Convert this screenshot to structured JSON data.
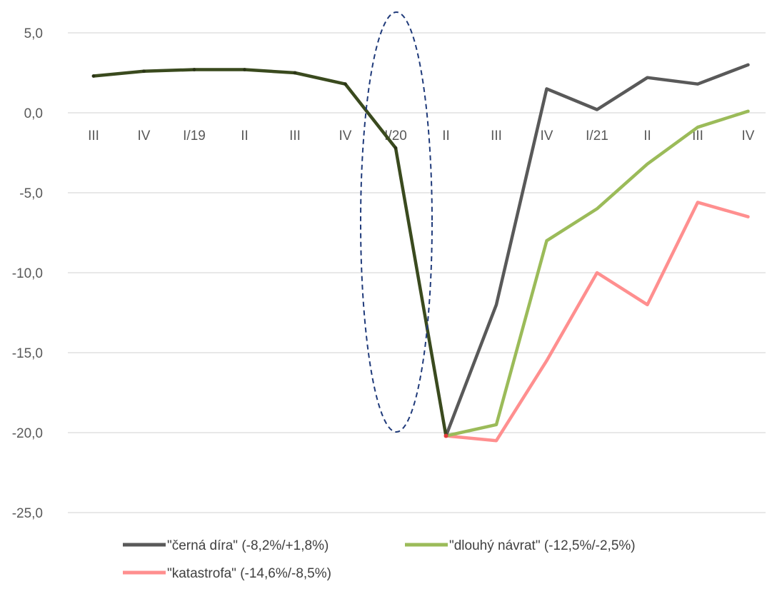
{
  "chart_data": {
    "type": "line",
    "categories": [
      "III",
      "IV",
      "I/19",
      "II",
      "III",
      "IV",
      "I/20",
      "II",
      "III",
      "IV",
      "I/21",
      "II",
      "III",
      "IV"
    ],
    "y_ticks": [
      "5,0",
      "0,0",
      "-5,0",
      "-10,0",
      "-15,0",
      "-20,0",
      "-25,0"
    ],
    "y_tick_values": [
      5,
      0,
      -5,
      -10,
      -15,
      -20,
      -25
    ],
    "ylim": [
      -25,
      5
    ],
    "grid": true,
    "legend_position": "bottom",
    "history": {
      "values": [
        2.3,
        2.6,
        2.7,
        2.7,
        2.5,
        1.8,
        -2.2,
        -20.2,
        null,
        null,
        null,
        null,
        null,
        null
      ],
      "color": "#3a4a1e"
    },
    "series": [
      {
        "name": "\"černá díra\" (-8,2%/+1,8%)",
        "color": "#595959",
        "values": [
          null,
          null,
          null,
          null,
          null,
          null,
          null,
          -20.2,
          -12.0,
          1.5,
          0.2,
          2.2,
          1.8,
          3.0
        ]
      },
      {
        "name": "\"dlouhý návrat\" (-12,5%/-2,5%)",
        "color": "#9bbb59",
        "values": [
          null,
          null,
          null,
          null,
          null,
          null,
          null,
          -20.2,
          -19.5,
          -8.0,
          -6.0,
          -3.2,
          -0.9,
          0.1
        ]
      },
      {
        "name": "\"katastrofa\" (-14,6%/-8,5%)",
        "color": "#ff8f8f",
        "values": [
          null,
          null,
          null,
          null,
          null,
          null,
          null,
          -20.2,
          -20.5,
          -15.5,
          -10.0,
          -12.0,
          -5.6,
          -6.5
        ]
      }
    ],
    "annotation": {
      "shape": "dashed-ellipse",
      "highlighted_category": "I/20",
      "color": "#1f3a7a"
    }
  }
}
